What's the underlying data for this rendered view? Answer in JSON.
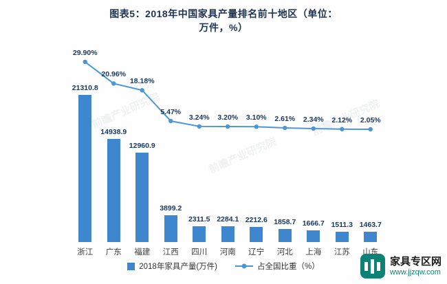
{
  "title": "图表5：2018年中国家具产量排名前十地区（单位：万件，%）",
  "chart_data": {
    "type": "bar",
    "categories": [
      "浙江",
      "广东",
      "福建",
      "江西",
      "四川",
      "河南",
      "辽宁",
      "河北",
      "上海",
      "江苏",
      "山东"
    ],
    "series": [
      {
        "name": "2018年家具产量(万件)",
        "type": "bar",
        "color": "#3e87ce",
        "values": [
          21310.8,
          14938.9,
          12960.9,
          3899.2,
          2311.5,
          2284.1,
          2212.6,
          1858.7,
          1666.7,
          1511.3,
          1463.7
        ],
        "value_labels": [
          "21310.8",
          "14938.9",
          "12960.9",
          "3899.2",
          "2311.5",
          "2284.1",
          "2212.6",
          "1858.7",
          "1666.7",
          "1511.3",
          "1463.7"
        ]
      },
      {
        "name": "占全国比重（%）",
        "type": "line",
        "color": "#4d96d6",
        "values": [
          29.9,
          20.96,
          18.18,
          5.47,
          3.24,
          3.2,
          3.1,
          2.61,
          2.34,
          2.12,
          2.05
        ],
        "value_labels": [
          "29.90%",
          "20.96%",
          "18.18%",
          "5.47%",
          "3.24%",
          "3.20%",
          "3.10%",
          "2.61%",
          "2.34%",
          "2.12%",
          "2.05%"
        ]
      }
    ],
    "legend": [
      "2018年家具产量(万件)",
      "占全国比重（%）"
    ],
    "grid": false,
    "legend_position": "bottom"
  },
  "watermark": {
    "brand": "前瞻产业研究院"
  },
  "footer_logo": {
    "site": "家具专区网",
    "url": "www.jjzqw.com"
  }
}
